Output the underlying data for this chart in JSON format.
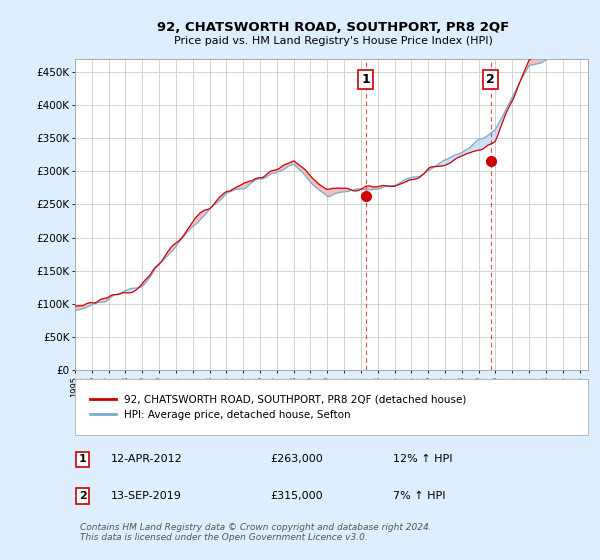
{
  "title": "92, CHATSWORTH ROAD, SOUTHPORT, PR8 2QF",
  "subtitle": "Price paid vs. HM Land Registry's House Price Index (HPI)",
  "ylabel_ticks": [
    "£0",
    "£50K",
    "£100K",
    "£150K",
    "£200K",
    "£250K",
    "£300K",
    "£350K",
    "£400K",
    "£450K"
  ],
  "ytick_values": [
    0,
    50000,
    100000,
    150000,
    200000,
    250000,
    300000,
    350000,
    400000,
    450000
  ],
  "ylim": [
    0,
    470000
  ],
  "xlim_start": 1995.0,
  "xlim_end": 2025.5,
  "red_line_color": "#cc0000",
  "blue_line_color": "#7aaad0",
  "fill_red_color": "#f5c0c0",
  "fill_blue_color": "#cce0f5",
  "background_color": "#ddeeff",
  "plot_bg_color": "#ffffff",
  "grid_color": "#cccccc",
  "sale1_x": 2012.28,
  "sale1_y": 263000,
  "sale2_x": 2019.71,
  "sale2_y": 315000,
  "legend_line1": "92, CHATSWORTH ROAD, SOUTHPORT, PR8 2QF (detached house)",
  "legend_line2": "HPI: Average price, detached house, Sefton",
  "annotation1_num": "1",
  "annotation1_date": "12-APR-2012",
  "annotation1_price": "£263,000",
  "annotation1_hpi": "12% ↑ HPI",
  "annotation2_num": "2",
  "annotation2_date": "13-SEP-2019",
  "annotation2_price": "£315,000",
  "annotation2_hpi": "7% ↑ HPI",
  "footer": "Contains HM Land Registry data © Crown copyright and database right 2024.\nThis data is licensed under the Open Government Licence v3.0."
}
